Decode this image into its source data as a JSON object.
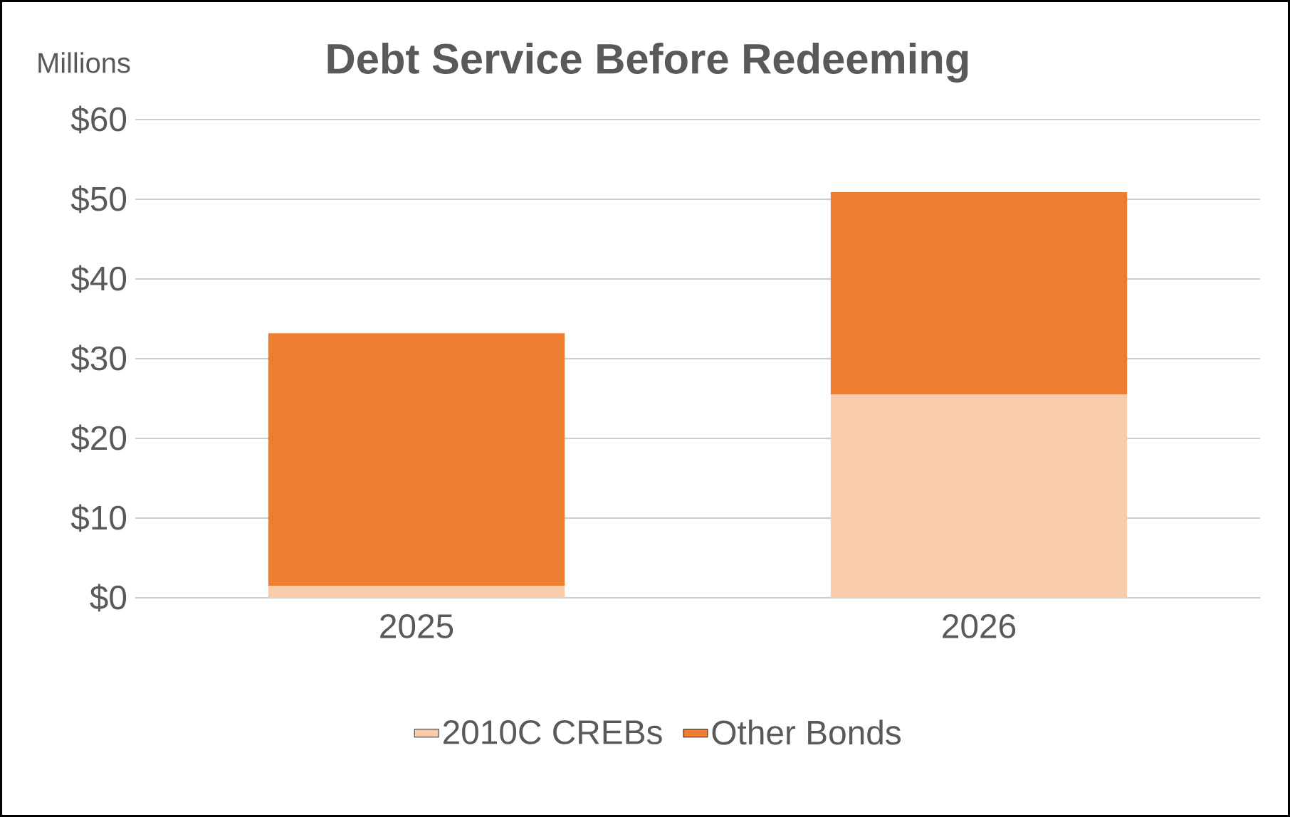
{
  "chart_data": {
    "type": "bar",
    "title": "Debt Service Before Redeeming",
    "ylabel": "Millions",
    "categories": [
      "2025",
      "2026"
    ],
    "stacked": true,
    "series": [
      {
        "name": "2010C CREBs",
        "color": "#f8cbad",
        "values": [
          1.5,
          25.5
        ]
      },
      {
        "name": "Other Bonds",
        "color": "#ed7d31",
        "values": [
          31.7,
          25.4
        ]
      }
    ],
    "ylim": [
      0,
      60
    ],
    "yticks": [
      {
        "value": 0,
        "label": "$0"
      },
      {
        "value": 10,
        "label": "$10"
      },
      {
        "value": 20,
        "label": "$20"
      },
      {
        "value": 30,
        "label": "$30"
      },
      {
        "value": 40,
        "label": "$40"
      },
      {
        "value": 50,
        "label": "$50"
      },
      {
        "value": 60,
        "label": "$60"
      }
    ],
    "grid": "y",
    "legend": "bottom"
  }
}
